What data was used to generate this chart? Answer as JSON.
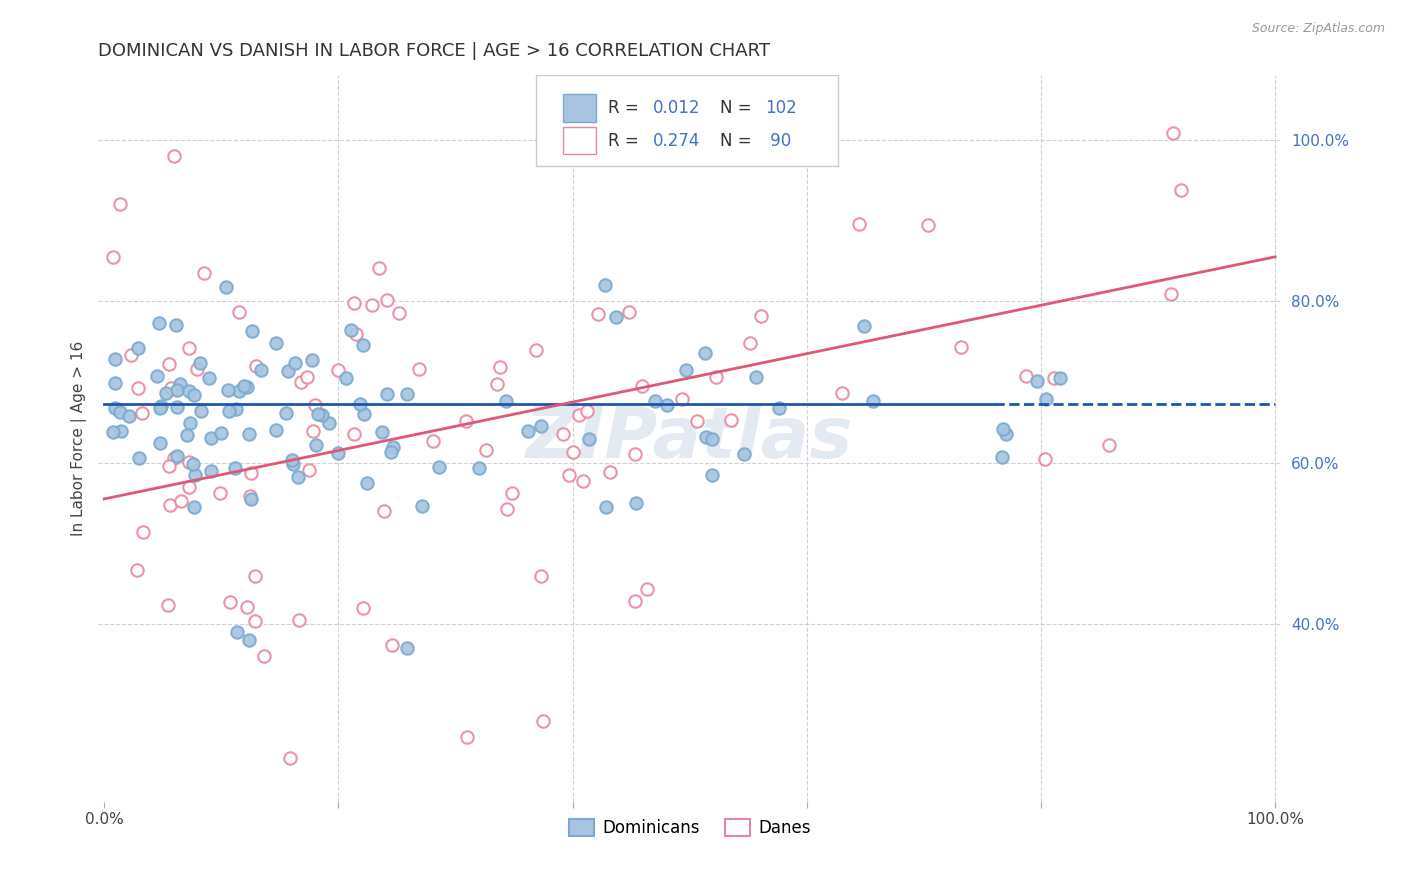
{
  "title": "DOMINICAN VS DANISH IN LABOR FORCE | AGE > 16 CORRELATION CHART",
  "source": "Source: ZipAtlas.com",
  "ylabel": "In Labor Force | Age > 16",
  "watermark": "ZIPatlas",
  "dominicans": {
    "R": 0.012,
    "N": 102,
    "scatter_facecolor": "#a8c4e0",
    "scatter_edgecolor": "#7aaacf",
    "line_color": "#2255aa",
    "label": "Dominicans"
  },
  "danes": {
    "R": 0.274,
    "N": 90,
    "scatter_facecolor": "#ffffff",
    "scatter_edgecolor": "#e888a0",
    "line_color": "#e05878",
    "label": "Danes"
  },
  "legend_color": "#4472c4",
  "y_ticks_right": [
    0.4,
    0.6,
    0.8,
    1.0
  ],
  "y_tick_labels_right": [
    "40.0%",
    "60.0%",
    "80.0%",
    "100.0%"
  ],
  "xlim": [
    -0.005,
    1.005
  ],
  "ylim": [
    0.18,
    1.08
  ],
  "dom_line_solid_end": 0.76,
  "dom_line_y": 0.672,
  "dan_line_y0": 0.555,
  "dan_line_y1": 0.855,
  "background_color": "#ffffff",
  "grid_color": "#cccccc",
  "title_color": "#333333",
  "right_tick_color": "#4472c4"
}
